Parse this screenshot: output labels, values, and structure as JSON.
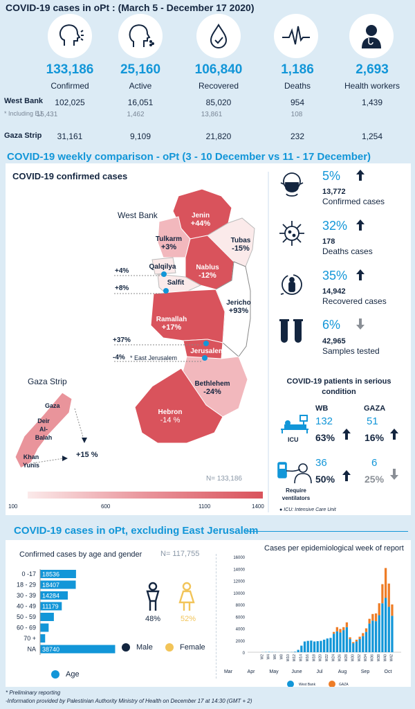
{
  "header": {
    "title": "COVID-19 cases in oPt : (March 5 - December 17 2020)"
  },
  "stats": [
    {
      "icon": "cough-icon",
      "value": "133,186",
      "label": "Confirmed",
      "wb": "102,025",
      "ej": "15,431",
      "gaza": "31,161"
    },
    {
      "icon": "sneeze-icon",
      "value": "25,160",
      "label": "Active",
      "wb": "16,051",
      "ej": "1,462",
      "gaza": "9,109"
    },
    {
      "icon": "drop-check-icon",
      "value": "106,840",
      "label": "Recovered",
      "wb": "85,020",
      "ej": "13,861",
      "gaza": "21,820"
    },
    {
      "icon": "heartbeat-icon",
      "value": "1,186",
      "label": "Deaths",
      "wb": "954",
      "ej": "108",
      "gaza": "232"
    },
    {
      "icon": "doctor-icon",
      "value": "2,693",
      "label": "Health workers",
      "wb": "1,439",
      "ej": "",
      "gaza": "1,254"
    }
  ],
  "rows": {
    "wb": "West Bank",
    "ej": "* Including EJ",
    "gaza": "Gaza Strip"
  },
  "weekly": {
    "title": "COVID-19 weekly comparison - oPt (3 - 10 December vs 11 - 17 December)",
    "map_title": "COVID-19 confirmed cases",
    "west_bank": "West Bank",
    "gaza_strip": "Gaza Strip",
    "regions": [
      {
        "name": "Jenin",
        "change": "+44%"
      },
      {
        "name": "Tubas",
        "change": "-15%"
      },
      {
        "name": "Tulkarm",
        "change": "+3%"
      },
      {
        "name": "Nablus",
        "change": "-12%"
      },
      {
        "name": "Qalqilya",
        "change": "+4%"
      },
      {
        "name": "Salfit",
        "change": "+8%"
      },
      {
        "name": "Jericho",
        "change": "+93%"
      },
      {
        "name": "Ramallah",
        "change": "+17%"
      },
      {
        "name": "Jerusalem",
        "change": "+37%"
      },
      {
        "name": "* East Jerusalem",
        "change": "-4%"
      },
      {
        "name": "Bethlehem",
        "change": "-24%"
      },
      {
        "name": "Hebron",
        "change": "-14 %"
      }
    ],
    "gaza_regions": [
      "Gaza",
      "Deir Al-Balah",
      "Khan Yunis"
    ],
    "gaza_change": "+15 %",
    "n_total": "N= 133,186",
    "scale": [
      "100",
      "600",
      "1100",
      "1400"
    ],
    "comparisons": [
      {
        "icon": "mask-icon",
        "pct": "5%",
        "dir": "up",
        "num": "13,772",
        "label": "Confirmed cases"
      },
      {
        "icon": "virus-icon",
        "pct": "32%",
        "dir": "up",
        "num": "178",
        "label": "Deaths cases"
      },
      {
        "icon": "recovered-icon",
        "pct": "35%",
        "dir": "up",
        "num": "14,942",
        "label": "Recovered cases"
      },
      {
        "icon": "test-tubes-icon",
        "pct": "6%",
        "dir": "down",
        "num": "42,965",
        "label": "Samples tested"
      }
    ],
    "serious": {
      "title": "COVID-19 patients in serious condition",
      "col_wb": "WB",
      "col_gaza": "GAZA",
      "icu": {
        "label": "ICU",
        "wb_num": "132",
        "wb_pct": "63%",
        "gaza_num": "51",
        "gaza_pct": "16%"
      },
      "vent": {
        "label": "Require ventilators",
        "wb_num": "36",
        "wb_pct": "50%",
        "gaza_num": "6",
        "gaza_pct": "25%"
      },
      "note": "ICU: Intensive Care Unit"
    }
  },
  "excl": {
    "title": "COVID-19 cases in oPt, excluding East Jerusalem",
    "age_title": "Confirmed cases by age and gender",
    "n": "N= 117,755",
    "male_pct": "48%",
    "female_pct": "52%",
    "male": "Male",
    "female": "Female",
    "age_legend": "Age",
    "weekly_title": "Cases per epidemiological week of report"
  },
  "footer": {
    "line1": "* Preliminary reporting",
    "line2": "-Information provided by Palestinian Authority Ministry of Health on December 17 at 14:30 (GMT + 2)"
  },
  "colors": {
    "accent": "#1296d8",
    "navy": "#13253f",
    "orange": "#ee7d27",
    "female": "#f2c458"
  },
  "chart_data": [
    {
      "type": "bar",
      "title": "Confirmed cases by age and gender",
      "categories": [
        "0 -17",
        "18 - 29",
        "30 - 39",
        "40 - 49",
        "50 - 59",
        "60 - 69",
        "70 +",
        "NA"
      ],
      "values": [
        18536,
        18407,
        14284,
        11179,
        7100,
        4400,
        2600,
        38740
      ],
      "labels": [
        "18536",
        "18407",
        "14284",
        "11179",
        "",
        "",
        "",
        "38740"
      ],
      "orientation": "horizontal",
      "xlim": [
        0,
        40000
      ],
      "legend": [
        "Age"
      ]
    },
    {
      "type": "bar",
      "stacked": true,
      "title": "Cases per epidemiological week of report",
      "ylim": [
        0,
        16000
      ],
      "yticks": [
        0,
        2000,
        4000,
        6000,
        8000,
        10000,
        12000,
        14000,
        16000
      ],
      "months": [
        "Mar",
        "Apr",
        "May",
        "June",
        "Jul",
        "Aug",
        "Sep",
        "Oct"
      ],
      "week_labels": [
        "W2",
        "W4",
        "W6",
        "W8",
        "W10",
        "W12",
        "W14",
        "W16",
        "W18",
        "W20",
        "W22",
        "W24",
        "W26",
        "W28",
        "W30",
        "W32",
        "W34",
        "W36",
        "W38",
        "W40",
        "W42"
      ],
      "series": [
        {
          "name": "West Bank",
          "color": "#1296d8",
          "values": [
            20,
            40,
            60,
            30,
            20,
            15,
            10,
            10,
            20,
            30,
            80,
            400,
            1100,
            1800,
            1900,
            1950,
            1800,
            1850,
            1900,
            2100,
            2300,
            2400,
            3100,
            3500,
            3300,
            3700,
            4200,
            2200,
            1500,
            1800,
            2200,
            2700,
            3400,
            4800,
            5300,
            5200,
            6200,
            8200,
            9100,
            7600,
            6100
          ]
        },
        {
          "name": "GAZA",
          "color": "#ee7d27",
          "values": [
            0,
            0,
            0,
            0,
            0,
            0,
            0,
            0,
            0,
            0,
            0,
            0,
            0,
            0,
            0,
            0,
            0,
            0,
            0,
            0,
            0,
            0,
            300,
            700,
            600,
            500,
            800,
            300,
            200,
            300,
            400,
            500,
            600,
            800,
            1100,
            1300,
            2000,
            3200,
            5000,
            3900,
            1900
          ]
        }
      ],
      "legend": [
        "West Bank",
        "GAZA"
      ]
    }
  ]
}
